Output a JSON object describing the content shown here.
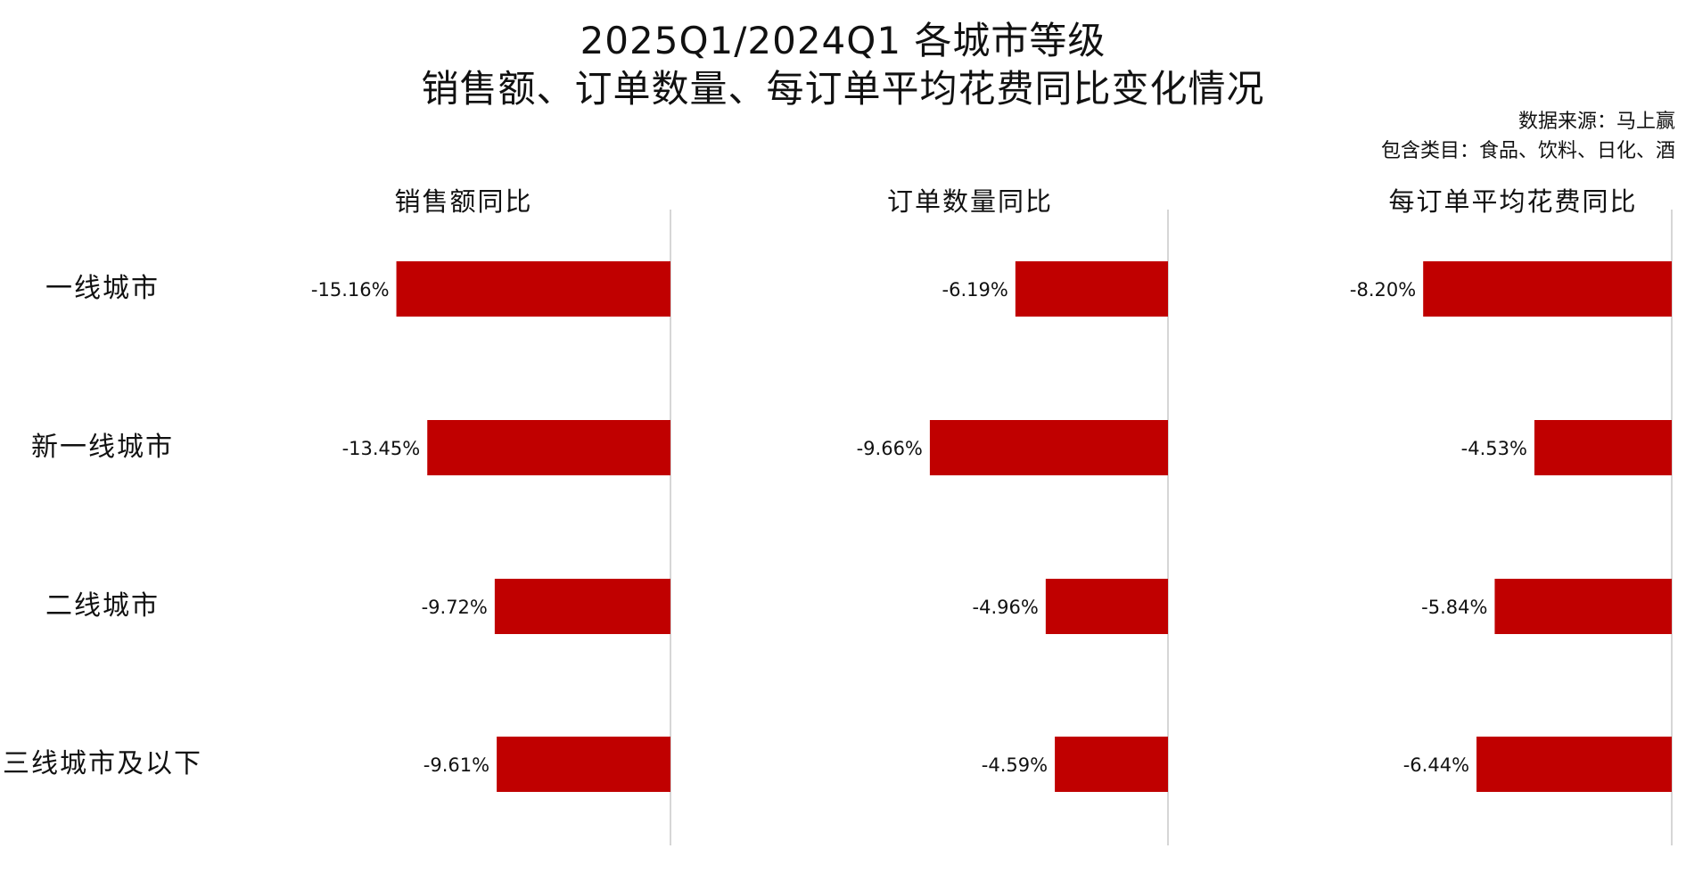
{
  "title_line1": "2025Q1/2024Q1 各城市等级",
  "title_line2": "销售额、订单数量、每订单平均花费同比变化情况",
  "source_note": "数据来源：马上赢",
  "category_note": "包含类目：食品、饮料、日化、酒",
  "colors": {
    "bar": "#C00000",
    "axis": "#C8C8C8",
    "text": "#111111"
  },
  "chart_data": {
    "type": "bar",
    "orientation": "horizontal",
    "categories": [
      "一线城市",
      "新一线城市",
      "二线城市",
      "三线城市及以下"
    ],
    "series": [
      {
        "name": "销售额同比",
        "values": [
          -15.16,
          -13.45,
          -9.72,
          -9.61
        ],
        "labels": [
          "-15.16%",
          "-13.45%",
          "-9.72%",
          "-9.61%"
        ]
      },
      {
        "name": "订单数量同比",
        "values": [
          -6.19,
          -9.66,
          -4.96,
          -4.59
        ],
        "labels": [
          "-6.19%",
          "-9.66%",
          "-4.96%",
          "-4.59%"
        ]
      },
      {
        "name": "每订单平均花费同比",
        "values": [
          -8.2,
          -4.53,
          -5.84,
          -6.44
        ],
        "labels": [
          "-8.20%",
          "-4.53%",
          "-5.84%",
          "-6.44%"
        ]
      }
    ],
    "grid": false,
    "legend": "none"
  }
}
